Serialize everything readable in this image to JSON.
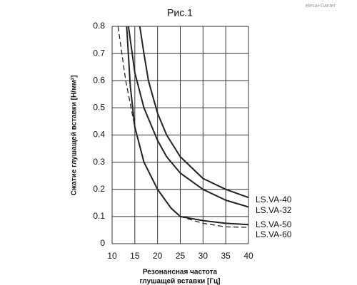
{
  "chart_data": {
    "type": "line",
    "title": "Рис.1",
    "ylabel": "Сжатие глушащей вставки  [Н/мм²]",
    "xlabel": [
      "Резонансная частота",
      "глушащей вставки [Гц]"
    ],
    "annotations": [
      "elesa+Ganter"
    ],
    "xlim": [
      10,
      40
    ],
    "xticks": [
      10,
      15,
      20,
      25,
      30,
      35,
      40
    ],
    "ylim": [
      0,
      0.8
    ],
    "yticks": [
      0,
      0.1,
      0.2,
      0.3,
      0.4,
      0.5,
      0.6,
      0.7,
      0.8
    ],
    "grid": true,
    "series": [
      {
        "name": "LS.VA-40",
        "color": "#222222",
        "dashed": false,
        "x": [
          16.1,
          17,
          18,
          20,
          22,
          25,
          30,
          35,
          40
        ],
        "values": [
          0.8,
          0.7,
          0.6,
          0.48,
          0.4,
          0.32,
          0.24,
          0.2,
          0.17
        ]
      },
      {
        "name": "LS.VA-32",
        "color": "#222222",
        "dashed": false,
        "x": [
          13.6,
          15,
          17,
          20,
          22,
          25,
          30,
          35,
          40
        ],
        "values": [
          0.8,
          0.63,
          0.5,
          0.38,
          0.32,
          0.26,
          0.2,
          0.16,
          0.135
        ]
      },
      {
        "name": "LS.VA-50",
        "color": "#222222",
        "dashed": false,
        "x": [
          13.2,
          14,
          15,
          17,
          20,
          23,
          25,
          30,
          35,
          40
        ],
        "values": [
          0.8,
          0.58,
          0.43,
          0.3,
          0.2,
          0.13,
          0.1,
          0.085,
          0.075,
          0.07
        ]
      },
      {
        "name": "LS.VA-60",
        "color": "#222222",
        "dashed": true,
        "x": [
          11.3,
          13,
          15,
          17,
          20,
          22.5,
          25,
          30,
          35,
          40
        ],
        "values": [
          0.8,
          0.6,
          0.43,
          0.3,
          0.2,
          0.14,
          0.1,
          0.075,
          0.062,
          0.06
        ]
      }
    ]
  }
}
